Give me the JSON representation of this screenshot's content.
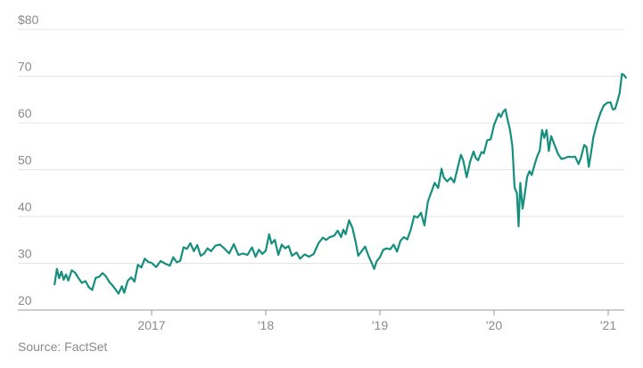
{
  "chart_data": {
    "type": "line",
    "title": "",
    "xlabel": "",
    "ylabel": "",
    "source": "Source: FactSet",
    "line_color": "#178f7e",
    "grid": true,
    "legend": "none",
    "xlim": [
      2016.12,
      2021.16
    ],
    "ylim": [
      20,
      80
    ],
    "yticks": [
      {
        "value": 80,
        "label": "$80"
      },
      {
        "value": 70,
        "label": "70"
      },
      {
        "value": 60,
        "label": "60"
      },
      {
        "value": 50,
        "label": "50"
      },
      {
        "value": 40,
        "label": "40"
      },
      {
        "value": 30,
        "label": "30"
      },
      {
        "value": 20,
        "label": "20"
      }
    ],
    "xticks": [
      {
        "value": 2017,
        "label": "2017"
      },
      {
        "value": 2018,
        "label": "'18"
      },
      {
        "value": 2019,
        "label": "'19"
      },
      {
        "value": 2020,
        "label": "'20"
      },
      {
        "value": 2021,
        "label": "'21"
      }
    ],
    "series": [
      {
        "values": [
          [
            2016.15,
            25.5
          ],
          [
            2016.17,
            28.8
          ],
          [
            2016.19,
            26.8
          ],
          [
            2016.21,
            28.2
          ],
          [
            2016.23,
            26.5
          ],
          [
            2016.25,
            27.6
          ],
          [
            2016.27,
            26.3
          ],
          [
            2016.3,
            28.5
          ],
          [
            2016.33,
            28.0
          ],
          [
            2016.36,
            26.8
          ],
          [
            2016.39,
            25.8
          ],
          [
            2016.42,
            26.2
          ],
          [
            2016.45,
            24.9
          ],
          [
            2016.48,
            24.3
          ],
          [
            2016.51,
            26.9
          ],
          [
            2016.54,
            27.1
          ],
          [
            2016.57,
            27.9
          ],
          [
            2016.6,
            27.2
          ],
          [
            2016.63,
            26.0
          ],
          [
            2016.66,
            25.2
          ],
          [
            2016.69,
            24.2
          ],
          [
            2016.71,
            23.5
          ],
          [
            2016.74,
            25.1
          ],
          [
            2016.76,
            23.7
          ],
          [
            2016.79,
            26.2
          ],
          [
            2016.82,
            27.0
          ],
          [
            2016.85,
            26.1
          ],
          [
            2016.88,
            29.7
          ],
          [
            2016.91,
            29.1
          ],
          [
            2016.94,
            31.0
          ],
          [
            2016.97,
            30.3
          ],
          [
            2017.0,
            30.1
          ],
          [
            2017.04,
            29.2
          ],
          [
            2017.08,
            30.5
          ],
          [
            2017.12,
            29.9
          ],
          [
            2017.16,
            29.5
          ],
          [
            2017.19,
            31.3
          ],
          [
            2017.22,
            30.2
          ],
          [
            2017.25,
            30.5
          ],
          [
            2017.28,
            33.4
          ],
          [
            2017.31,
            33.1
          ],
          [
            2017.34,
            34.3
          ],
          [
            2017.37,
            32.6
          ],
          [
            2017.4,
            33.9
          ],
          [
            2017.43,
            31.6
          ],
          [
            2017.46,
            32.1
          ],
          [
            2017.49,
            33.2
          ],
          [
            2017.52,
            32.6
          ],
          [
            2017.56,
            33.8
          ],
          [
            2017.6,
            34.0
          ],
          [
            2017.64,
            33.1
          ],
          [
            2017.68,
            32.1
          ],
          [
            2017.72,
            34.1
          ],
          [
            2017.76,
            31.8
          ],
          [
            2017.8,
            32.1
          ],
          [
            2017.84,
            31.8
          ],
          [
            2017.88,
            33.4
          ],
          [
            2017.91,
            31.4
          ],
          [
            2017.94,
            32.9
          ],
          [
            2017.97,
            32.0
          ],
          [
            2018.0,
            32.7
          ],
          [
            2018.03,
            36.2
          ],
          [
            2018.05,
            34.2
          ],
          [
            2018.08,
            35.0
          ],
          [
            2018.11,
            31.8
          ],
          [
            2018.14,
            34.0
          ],
          [
            2018.17,
            33.2
          ],
          [
            2018.2,
            33.7
          ],
          [
            2018.23,
            31.6
          ],
          [
            2018.27,
            32.3
          ],
          [
            2018.3,
            31.0
          ],
          [
            2018.34,
            31.9
          ],
          [
            2018.38,
            31.4
          ],
          [
            2018.42,
            32.0
          ],
          [
            2018.46,
            34.2
          ],
          [
            2018.5,
            35.5
          ],
          [
            2018.53,
            35.0
          ],
          [
            2018.56,
            35.6
          ],
          [
            2018.6,
            35.9
          ],
          [
            2018.63,
            37.0
          ],
          [
            2018.66,
            35.6
          ],
          [
            2018.68,
            37.2
          ],
          [
            2018.7,
            36.2
          ],
          [
            2018.73,
            39.2
          ],
          [
            2018.76,
            37.5
          ],
          [
            2018.79,
            34.3
          ],
          [
            2018.81,
            31.6
          ],
          [
            2018.84,
            32.6
          ],
          [
            2018.87,
            33.6
          ],
          [
            2018.9,
            31.6
          ],
          [
            2018.93,
            30.0
          ],
          [
            2018.95,
            28.8
          ],
          [
            2018.97,
            30.4
          ],
          [
            2019.0,
            31.3
          ],
          [
            2019.03,
            32.9
          ],
          [
            2019.06,
            33.2
          ],
          [
            2019.09,
            33.0
          ],
          [
            2019.12,
            34.0
          ],
          [
            2019.15,
            32.5
          ],
          [
            2019.18,
            34.8
          ],
          [
            2019.21,
            35.6
          ],
          [
            2019.24,
            35.1
          ],
          [
            2019.27,
            37.2
          ],
          [
            2019.3,
            40.1
          ],
          [
            2019.33,
            39.8
          ],
          [
            2019.36,
            40.8
          ],
          [
            2019.39,
            38.1
          ],
          [
            2019.42,
            43.2
          ],
          [
            2019.45,
            45.2
          ],
          [
            2019.48,
            47.2
          ],
          [
            2019.51,
            46.1
          ],
          [
            2019.54,
            50.2
          ],
          [
            2019.56,
            48.3
          ],
          [
            2019.59,
            47.5
          ],
          [
            2019.62,
            48.3
          ],
          [
            2019.65,
            47.3
          ],
          [
            2019.69,
            51.3
          ],
          [
            2019.71,
            53.2
          ],
          [
            2019.73,
            52.0
          ],
          [
            2019.76,
            48.4
          ],
          [
            2019.79,
            51.7
          ],
          [
            2019.82,
            53.9
          ],
          [
            2019.84,
            52.5
          ],
          [
            2019.86,
            52.0
          ],
          [
            2019.89,
            53.8
          ],
          [
            2019.91,
            53.5
          ],
          [
            2019.94,
            56.3
          ],
          [
            2019.97,
            56.5
          ],
          [
            2020.0,
            59.6
          ],
          [
            2020.02,
            60.8
          ],
          [
            2020.04,
            62.0
          ],
          [
            2020.06,
            61.3
          ],
          [
            2020.08,
            62.4
          ],
          [
            2020.1,
            62.9
          ],
          [
            2020.12,
            60.5
          ],
          [
            2020.14,
            58.5
          ],
          [
            2020.16,
            55.1
          ],
          [
            2020.18,
            46.2
          ],
          [
            2020.2,
            45.0
          ],
          [
            2020.215,
            37.9
          ],
          [
            2020.23,
            47.2
          ],
          [
            2020.25,
            41.7
          ],
          [
            2020.27,
            45.0
          ],
          [
            2020.29,
            48.5
          ],
          [
            2020.31,
            49.7
          ],
          [
            2020.33,
            48.9
          ],
          [
            2020.36,
            51.5
          ],
          [
            2020.38,
            53.0
          ],
          [
            2020.4,
            54.1
          ],
          [
            2020.42,
            58.5
          ],
          [
            2020.44,
            56.8
          ],
          [
            2020.46,
            58.5
          ],
          [
            2020.48,
            54.0
          ],
          [
            2020.5,
            57.2
          ],
          [
            2020.53,
            55.3
          ],
          [
            2020.56,
            53.4
          ],
          [
            2020.59,
            52.3
          ],
          [
            2020.62,
            52.5
          ],
          [
            2020.65,
            52.8
          ],
          [
            2020.68,
            52.7
          ],
          [
            2020.71,
            52.8
          ],
          [
            2020.74,
            51.2
          ],
          [
            2020.76,
            52.5
          ],
          [
            2020.79,
            55.3
          ],
          [
            2020.81,
            54.8
          ],
          [
            2020.83,
            50.6
          ],
          [
            2020.85,
            53.7
          ],
          [
            2020.87,
            57.0
          ],
          [
            2020.9,
            59.8
          ],
          [
            2020.93,
            62.0
          ],
          [
            2020.96,
            63.7
          ],
          [
            2020.99,
            64.3
          ],
          [
            2021.02,
            64.4
          ],
          [
            2021.04,
            62.9
          ],
          [
            2021.06,
            63.0
          ],
          [
            2021.08,
            64.6
          ],
          [
            2021.1,
            66.4
          ],
          [
            2021.12,
            70.5
          ],
          [
            2021.14,
            70.2
          ],
          [
            2021.155,
            69.7
          ]
        ]
      }
    ]
  }
}
